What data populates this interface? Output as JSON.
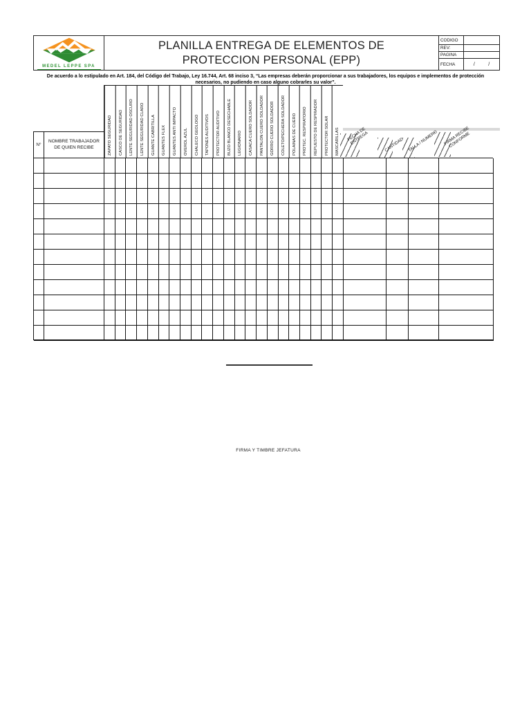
{
  "header": {
    "logo": {
      "company": "MEDEL LEPPE SPA",
      "orange": "#F5921E",
      "green": "#2E8B33"
    },
    "title": "PLANILLA ENTREGA DE ELEMENTOS DE PROTECCION PERSONAL (EPP)",
    "info": [
      {
        "label": "CODIGO",
        "value": ""
      },
      {
        "label": "REV:",
        "value": ""
      },
      {
        "label": "PAGINA",
        "value": ""
      },
      {
        "label": "FECHA",
        "value": "/          /"
      }
    ]
  },
  "legal_note": "De acuerdo a lo estipulado en Art. 184, del Código del Trabajo, Ley 16.744, Art. 68 inciso 3, “Las empresas deberán proporcionar a sus trabajadores, los equipos e implementos de protección necesarios, no pudiendo en caso alguno cobrarles su valor”.",
  "table": {
    "no_header": "N°",
    "name_header": "NOMBRE TRABAJADOR DE QUIEN RECIBE",
    "items": [
      "ZAPATO SEGURIDAD",
      "CASCO DE SEGURIDAD",
      "LENTE SEGURIDAD OSCURO",
      "LENTE SEGURIDAD CLARO",
      "GUANTE CABRITILLA",
      "GUANTES FLEX",
      "GUANTES ANTI IMPACTO",
      "OVEROL AZUL",
      "CHALECO GEOLOGO",
      "TAPONES AUDITIVOS",
      "PROTECTOR AUDITIVO",
      "BUZO BLANCO DESECHABLE",
      "LEGIONARIO",
      "CASACA CUERO SOLDADOR",
      "PANTALON CUERO SOLDADOR",
      "GORRO CUERO SOLDADOR",
      "COLETO/PECHERA SOLDADOR",
      "POLAINAS DE CUERO",
      "PROTEC. RESPIRATORIO",
      "REPUESTO DE RESPIRADOR",
      "PROTECTOR SOLAR",
      "MASCARILLAS"
    ],
    "extra_columns": [
      "FECHA DE ENTREGA",
      "CANTIDAD",
      "TALLA / NUMERO",
      "FIRMA RECIBE CONFORME"
    ],
    "row_count": 12
  },
  "footer": {
    "signature_caption": "FIRMA Y TIMBRE JEFATURA"
  }
}
